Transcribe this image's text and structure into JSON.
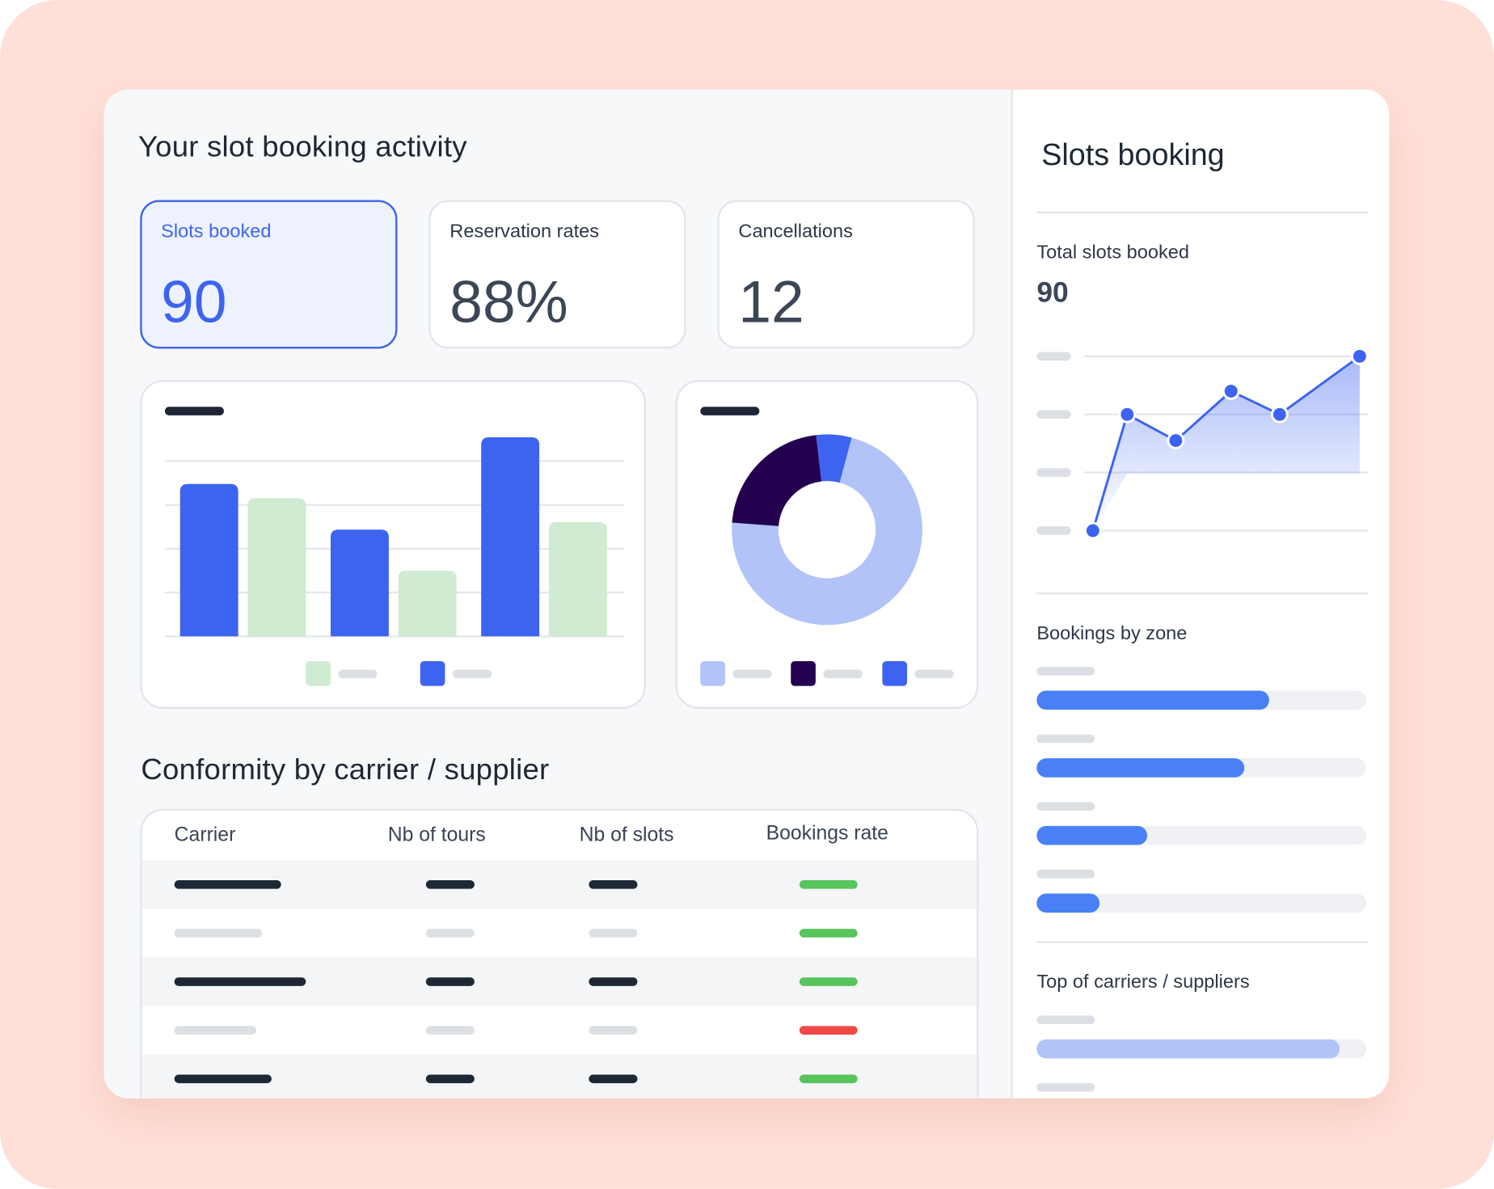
{
  "activity": {
    "title": "Your slot booking activity",
    "kpis": [
      {
        "label": "Slots booked",
        "value": "90"
      },
      {
        "label": "Reservation rates",
        "value": "88%"
      },
      {
        "label": "Cancellations",
        "value": "12"
      }
    ]
  },
  "bar_chart": {
    "type": "bar",
    "categories": [
      "",
      "",
      ""
    ],
    "series": [
      {
        "values": [
          160,
          112,
          209
        ],
        "color": "#3d64f0"
      },
      {
        "values": [
          145,
          69,
          120
        ],
        "color": "#cfebd2"
      }
    ],
    "ylim": [
      0,
      230
    ]
  },
  "donut_chart": {
    "type": "pie",
    "values": [
      72,
      22,
      6
    ],
    "colors": [
      "#b2c3f8",
      "#24014f",
      "#3d64f0"
    ]
  },
  "conformity": {
    "title": "Conformity by carrier / supplier",
    "columns": [
      "Carrier",
      "Nb of tours",
      "Nb of slots",
      "Bookings rate"
    ],
    "row_status_colors": [
      "#58c45c",
      "#58c45c",
      "#58c45c",
      "#f04747",
      "#58c45c"
    ]
  },
  "sidebar": {
    "title": "Slots booking",
    "total_label": "Total slots booked",
    "total_value": "90",
    "zones_label": "Bookings by zone",
    "top_label": "Top of carriers / suppliers"
  },
  "line_chart": {
    "type": "area",
    "values": [
      0,
      4,
      3.1,
      4.8,
      4,
      6
    ],
    "ylim": [
      0,
      6
    ],
    "color": "#3d64f0"
  },
  "zone_bars": [
    0.705,
    0.63,
    0.335,
    0.19
  ],
  "top_bars": [
    0.92
  ],
  "colors": {
    "accent": "#3d64f0",
    "lavender": "#b2c3f8",
    "dark_purple": "#24014f",
    "mint": "#cfebd2"
  }
}
